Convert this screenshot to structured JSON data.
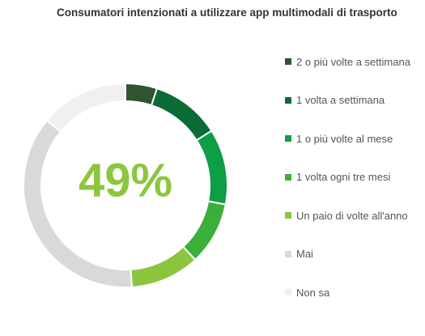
{
  "title": "Consumatori intenzionati a utilizzare app multimodali di trasporto",
  "chart_data": {
    "type": "pie",
    "donut": true,
    "center_label": "49%",
    "center_label_color": "#8cc63f",
    "series": [
      {
        "name": "2 o più volte a settimana",
        "value": 5,
        "color": "#2e5430"
      },
      {
        "name": "1 volta a settimana",
        "value": 11,
        "color": "#0b6b35"
      },
      {
        "name": "1 o più volte al mese",
        "value": 12,
        "color": "#0e9e45"
      },
      {
        "name": "1 volta ogni tre mesi",
        "value": 10,
        "color": "#3cae3a"
      },
      {
        "name": "Un paio di volte all'anno",
        "value": 11,
        "color": "#8dc43f"
      },
      {
        "name": "Mai",
        "value": 37,
        "color": "#d9d9d9"
      },
      {
        "name": "Non sa",
        "value": 14,
        "color": "#f0f0f0"
      }
    ],
    "legend_position": "right"
  }
}
